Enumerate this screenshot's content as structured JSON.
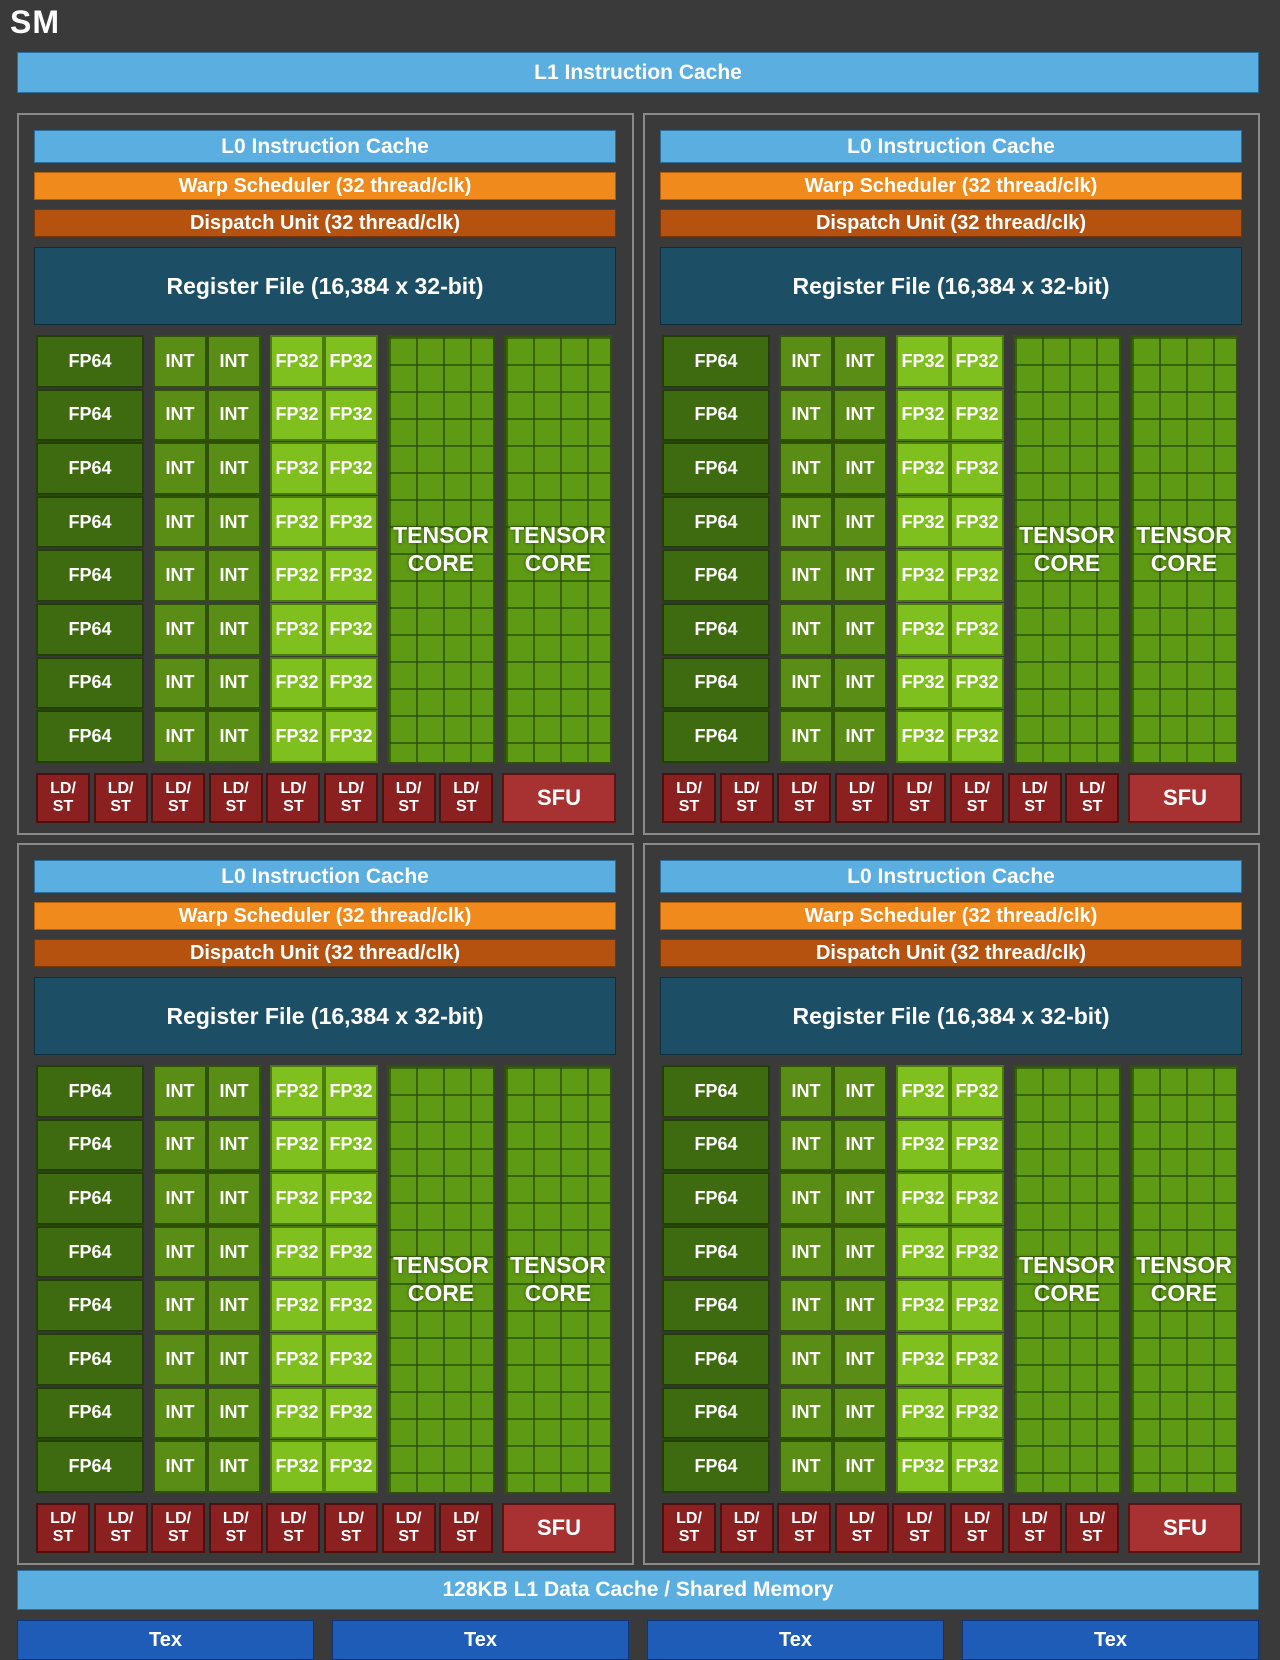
{
  "sm_title": "SM",
  "l1_instruction_cache": "L1 Instruction Cache",
  "processing_block": {
    "l0_instruction_cache": "L0 Instruction Cache",
    "warp_scheduler": "Warp Scheduler (32 thread/clk)",
    "dispatch_unit": "Dispatch Unit (32 thread/clk)",
    "register_file": "Register File (16,384 x 32-bit)",
    "fp64": "FP64",
    "int": "INT",
    "fp32": "FP32",
    "tensor_core_line1": "TENSOR",
    "tensor_core_line2": "CORE",
    "ldst_line1": "LD/",
    "ldst_line2": "ST",
    "sfu": "SFU",
    "rows": 8,
    "ldst_units": 8
  },
  "l1_data_cache": "128KB L1 Data Cache / Shared Memory",
  "tex_units": [
    "Tex",
    "Tex",
    "Tex",
    "Tex"
  ],
  "colors": {
    "background": "#3a3a3a",
    "cache": "#5aaee0",
    "warp_scheduler": "#f08a1d",
    "dispatch_unit": "#b5520f",
    "register_file": "#1c4f66",
    "fp64": "#3f6b10",
    "int": "#5a8d15",
    "fp32": "#7fc01f",
    "tensor_core": "#5e9a14",
    "ldst": "#8a2020",
    "sfu": "#a83232",
    "tex": "#1e5cb8"
  }
}
